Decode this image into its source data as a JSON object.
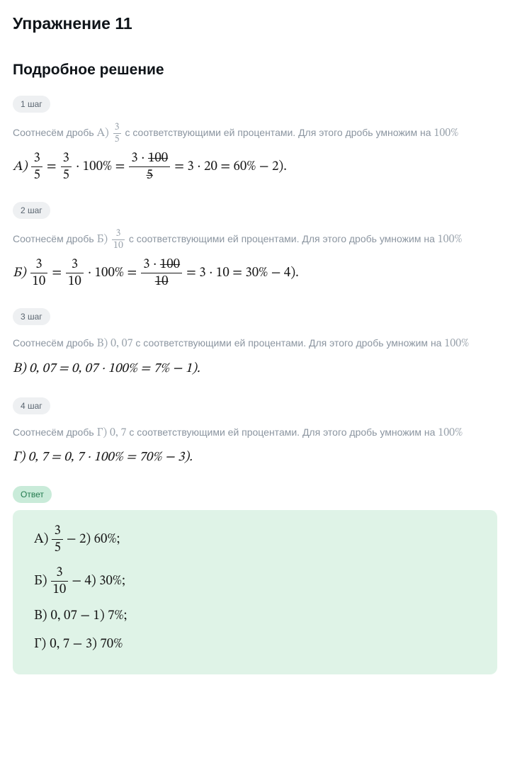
{
  "title": "Упражнение 11",
  "subtitle": "Подробное решение",
  "colors": {
    "text_body": "#8b95a0",
    "text_heading": "#0f1419",
    "badge_bg": "#eef0f2",
    "badge_fg": "#5a6570",
    "answer_badge_bg": "#c9ebd9",
    "answer_badge_fg": "#247a4e",
    "answer_box_bg": "#dff3e7",
    "math_inline": "#9ca5ae",
    "formula": "#1a1a1a"
  },
  "steps": [
    {
      "badge": "1 шаг",
      "intro_pre": "Соотнесём дробь ",
      "intro_label": "A)",
      "intro_frac": {
        "num": "3",
        "den": "5"
      },
      "intro_post": " с соответствующими ей процентами. Для этого дробь умножим на ",
      "intro_tail": "100%",
      "formula": {
        "letter": "A)",
        "f1": {
          "num": "3",
          "den": "5"
        },
        "eq1": "=",
        "f2": {
          "num": "3",
          "den": "5"
        },
        "times": "· 100% =",
        "f3": {
          "num_pre": "3 · ",
          "num_strike": "100",
          "den_strike": "5"
        },
        "rest": "= 3 · 20 = 60% − 2)."
      }
    },
    {
      "badge": "2 шаг",
      "intro_pre": "Соотнесём дробь ",
      "intro_label": "Б)",
      "intro_frac": {
        "num": "3",
        "den": "10"
      },
      "intro_post": " с соответствующими ей процентами. Для этого дробь умножим на ",
      "intro_tail": "100%",
      "formula": {
        "letter": "Б)",
        "f1": {
          "num": "3",
          "den": "10"
        },
        "eq1": "=",
        "f2": {
          "num": "3",
          "den": "10"
        },
        "times": "· 100% =",
        "f3": {
          "num_pre": "3 · ",
          "num_strike": "100",
          "den_strike": "10"
        },
        "rest": "= 3 · 10 = 30% − 4)."
      }
    },
    {
      "badge": "3 шаг",
      "intro_pre": "Соотнесём дробь ",
      "intro_label": "В)",
      "intro_plain": "0, 07",
      "intro_post": " с соответствующими ей процентами. Для этого дробь умножим на ",
      "intro_tail": "100%",
      "formula_plain": "В) 0, 07 = 0, 07 · 100% = 7% − 1)."
    },
    {
      "badge": "4 шаг",
      "intro_pre": "Соотнесём дробь ",
      "intro_label": "Г)",
      "intro_plain": "0, 7",
      "intro_post": " с соответствующими ей процентами. Для этого дробь умножим на ",
      "intro_tail": "100%",
      "formula_plain": "Г) 0, 7 = 0, 7 · 100% = 70% − 3)."
    }
  ],
  "answer": {
    "badge": "Ответ",
    "lines": [
      {
        "letter": "A)",
        "frac": {
          "num": "3",
          "den": "5"
        },
        "rest": " − 2) 60%;"
      },
      {
        "letter": "Б)",
        "frac": {
          "num": "3",
          "den": "10"
        },
        "rest": " − 4) 30%;"
      },
      {
        "letter": "В)",
        "plain": "0, 07 − 1) 7%;"
      },
      {
        "letter": "Г)",
        "plain": "0, 7 − 3) 70%"
      }
    ]
  }
}
